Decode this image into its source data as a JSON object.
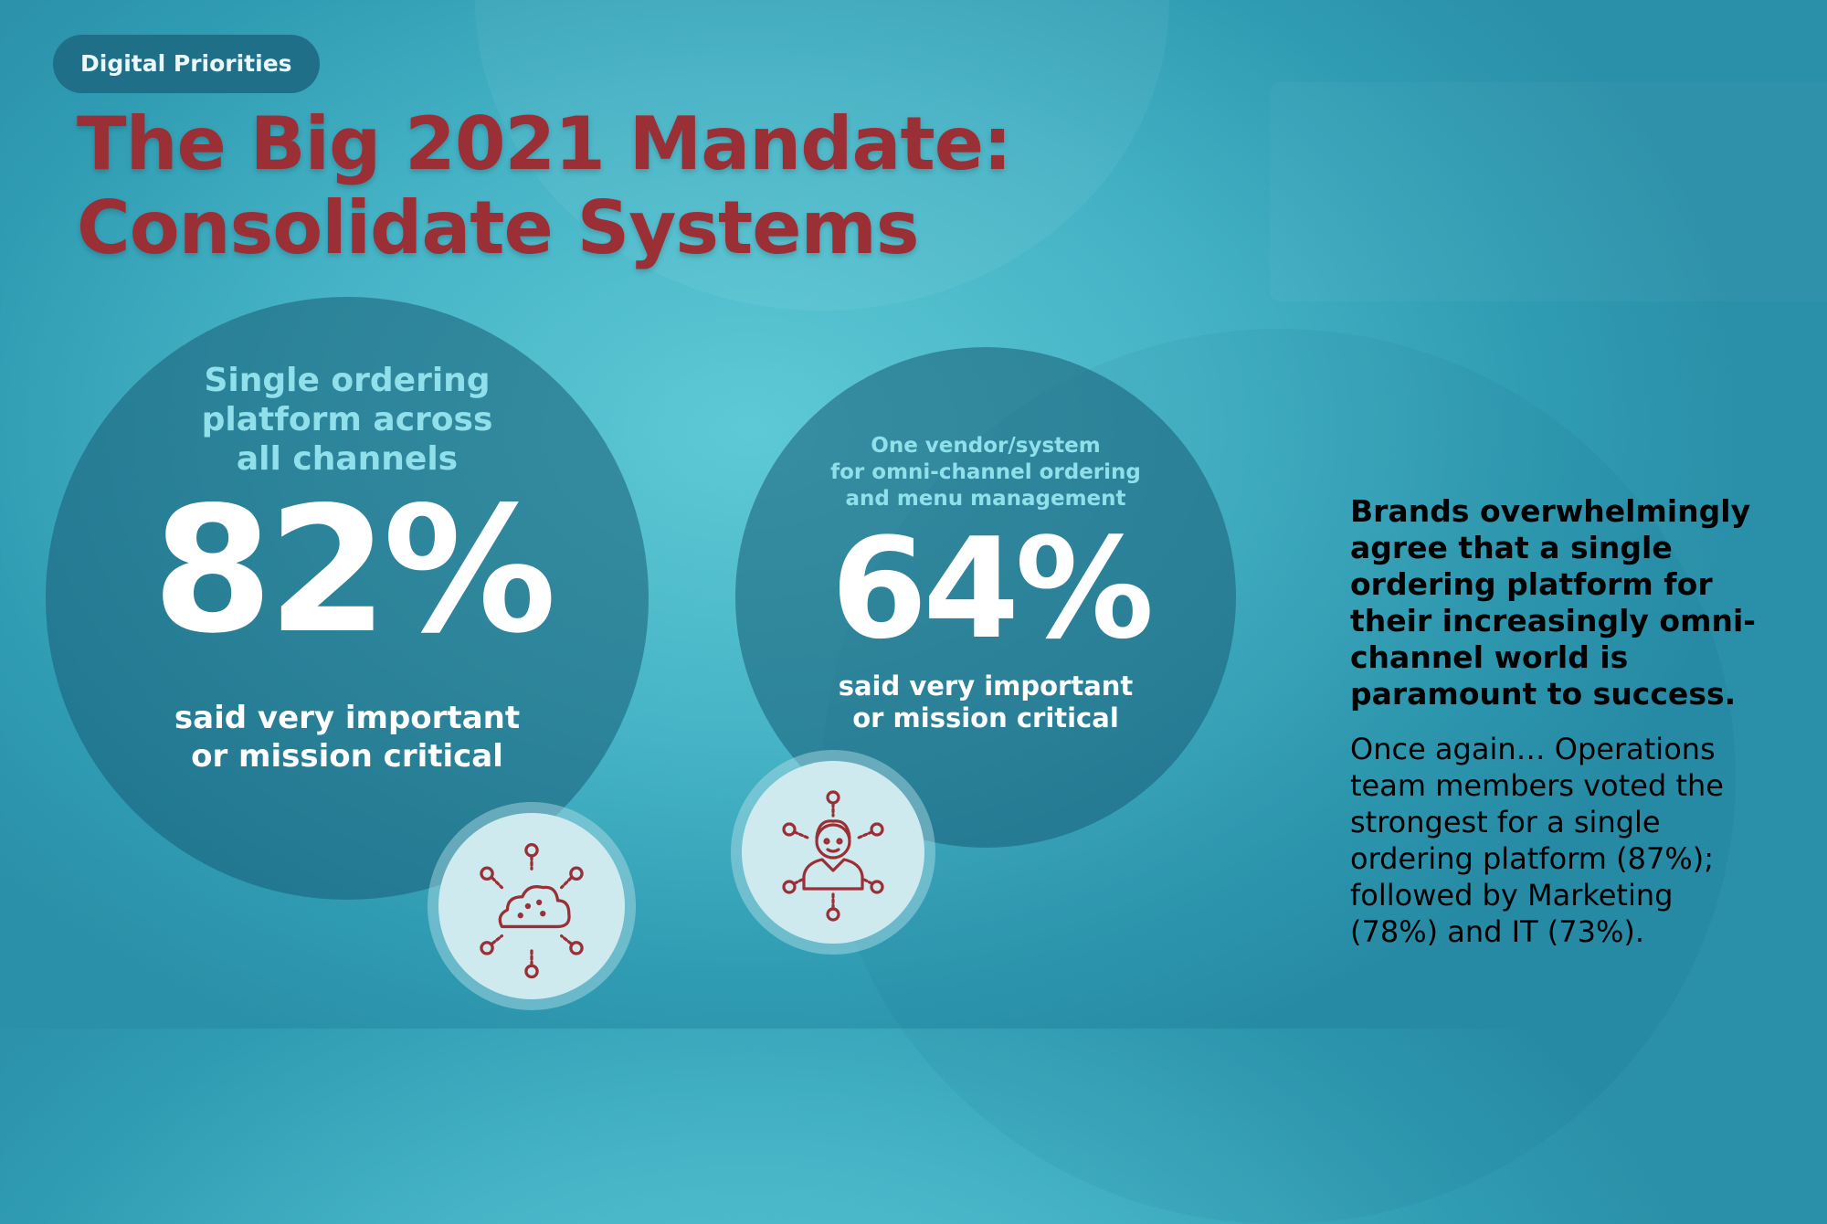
{
  "badge": "Digital Priorities",
  "title": [
    "The Big 2021 Mandate:",
    "Consolidate Systems"
  ],
  "stat_1": {
    "heading": [
      "Single ordering",
      "platform across",
      "all channels"
    ],
    "percent": "82%",
    "caption": [
      "said very important",
      "or mission critical"
    ],
    "icon": "cloud-network-icon"
  },
  "stat_2": {
    "heading": [
      "One vendor/system",
      "for omni-channel ordering",
      "and menu management"
    ],
    "percent": "64%",
    "caption": [
      "said very important",
      "or mission critical"
    ],
    "icon": "person-network-icon"
  },
  "sidebar": {
    "bold_text": [
      "Brands overwhelmingly",
      "agree that a single",
      "ordering platform for",
      "their increasingly omni-",
      "channel world is",
      "paramount to success."
    ],
    "body_text": [
      "Once again… Operations",
      "team members voted the",
      "strongest for a single",
      "ordering platform (87%);",
      "followed by Marketing",
      "(78%) and IT (73%)."
    ]
  },
  "colors": {
    "title": "#9a2f36",
    "heading_accent": "#8fe0ea",
    "icon_stroke": "#9a2f36",
    "badge_bg": "#1f6f88"
  }
}
